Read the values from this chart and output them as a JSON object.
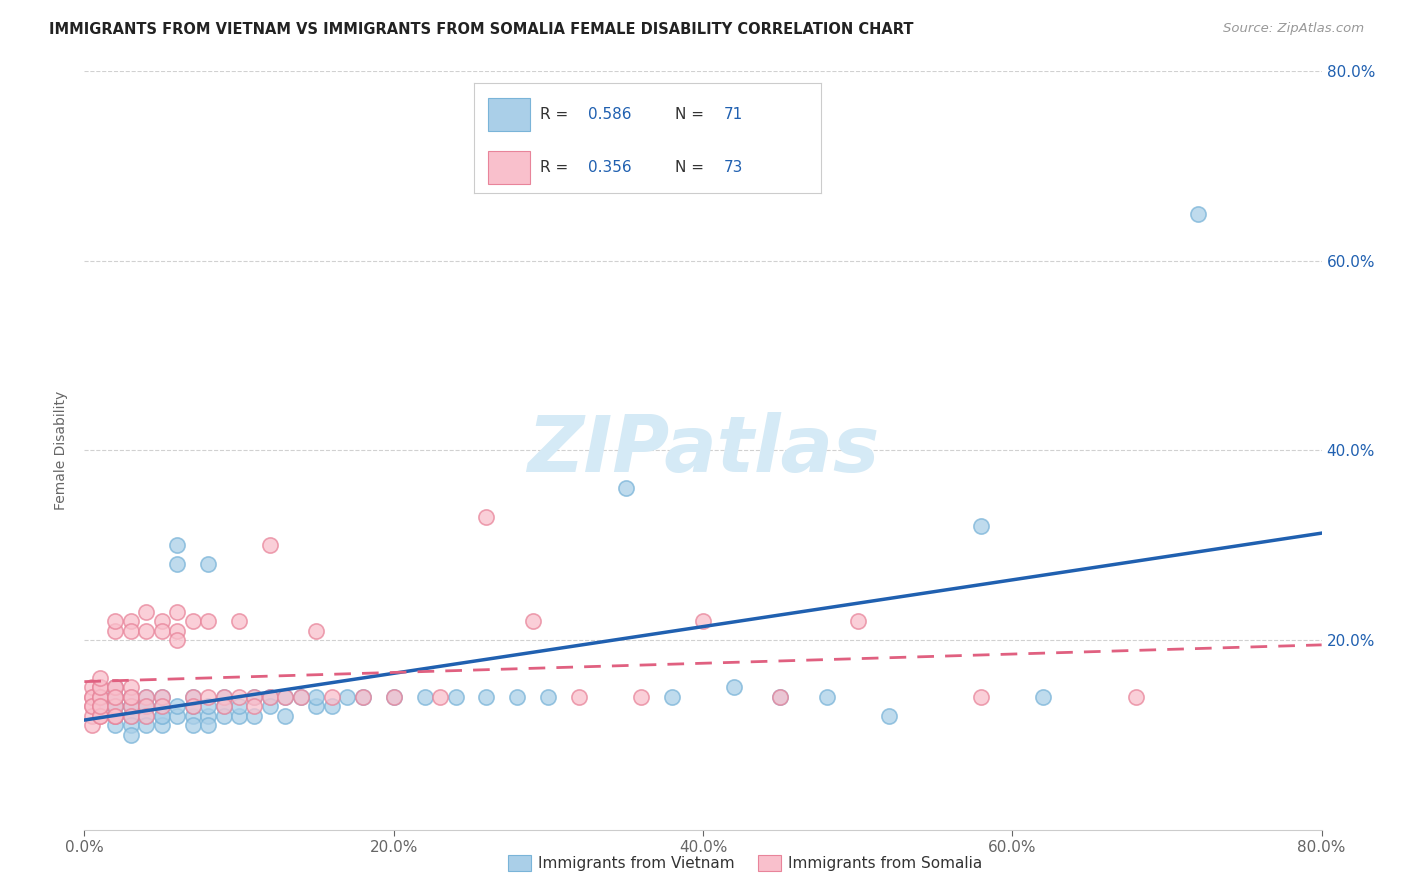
{
  "title": "IMMIGRANTS FROM VIETNAM VS IMMIGRANTS FROM SOMALIA FEMALE DISABILITY CORRELATION CHART",
  "source": "Source: ZipAtlas.com",
  "ylabel": "Female Disability",
  "xlim": [
    0.0,
    0.8
  ],
  "ylim": [
    0.0,
    0.8
  ],
  "xtick_labels": [
    "0.0%",
    "20.0%",
    "40.0%",
    "60.0%",
    "80.0%"
  ],
  "xtick_positions": [
    0.0,
    0.2,
    0.4,
    0.6,
    0.8
  ],
  "ytick_labels": [
    "20.0%",
    "40.0%",
    "60.0%",
    "80.0%"
  ],
  "ytick_positions": [
    0.2,
    0.4,
    0.6,
    0.8
  ],
  "vietnam_color": "#aacfe8",
  "vietnam_edge_color": "#7ab4d8",
  "somalia_color": "#f9c0cc",
  "somalia_edge_color": "#e8849a",
  "vietnam_line_color": "#2060b0",
  "somalia_line_color": "#e06080",
  "background_color": "#ffffff",
  "grid_color": "#cccccc",
  "watermark_color": "#d5eaf6",
  "vietnam_R": "0.586",
  "vietnam_N": "71",
  "somalia_R": "0.356",
  "somalia_N": "73",
  "vietnam_scatter_x": [
    0.01,
    0.01,
    0.02,
    0.02,
    0.02,
    0.02,
    0.02,
    0.02,
    0.02,
    0.02,
    0.03,
    0.03,
    0.03,
    0.03,
    0.03,
    0.03,
    0.03,
    0.04,
    0.04,
    0.04,
    0.04,
    0.04,
    0.05,
    0.05,
    0.05,
    0.05,
    0.05,
    0.06,
    0.06,
    0.06,
    0.06,
    0.07,
    0.07,
    0.07,
    0.07,
    0.08,
    0.08,
    0.08,
    0.08,
    0.09,
    0.09,
    0.09,
    0.1,
    0.1,
    0.11,
    0.11,
    0.12,
    0.12,
    0.13,
    0.13,
    0.14,
    0.15,
    0.15,
    0.16,
    0.17,
    0.18,
    0.2,
    0.22,
    0.24,
    0.26,
    0.28,
    0.3,
    0.35,
    0.38,
    0.42,
    0.45,
    0.48,
    0.52,
    0.58,
    0.62,
    0.72
  ],
  "vietnam_scatter_y": [
    0.13,
    0.14,
    0.12,
    0.13,
    0.14,
    0.15,
    0.12,
    0.13,
    0.11,
    0.14,
    0.12,
    0.13,
    0.14,
    0.12,
    0.11,
    0.13,
    0.1,
    0.12,
    0.13,
    0.14,
    0.11,
    0.13,
    0.12,
    0.13,
    0.14,
    0.11,
    0.12,
    0.28,
    0.3,
    0.12,
    0.13,
    0.12,
    0.13,
    0.14,
    0.11,
    0.28,
    0.12,
    0.13,
    0.11,
    0.13,
    0.14,
    0.12,
    0.12,
    0.13,
    0.14,
    0.12,
    0.14,
    0.13,
    0.14,
    0.12,
    0.14,
    0.13,
    0.14,
    0.13,
    0.14,
    0.14,
    0.14,
    0.14,
    0.14,
    0.14,
    0.14,
    0.14,
    0.36,
    0.14,
    0.15,
    0.14,
    0.14,
    0.12,
    0.32,
    0.14,
    0.65
  ],
  "somalia_scatter_x": [
    0.005,
    0.005,
    0.005,
    0.005,
    0.005,
    0.005,
    0.005,
    0.01,
    0.01,
    0.01,
    0.01,
    0.01,
    0.01,
    0.01,
    0.01,
    0.01,
    0.02,
    0.02,
    0.02,
    0.02,
    0.02,
    0.02,
    0.02,
    0.02,
    0.02,
    0.03,
    0.03,
    0.03,
    0.03,
    0.03,
    0.03,
    0.03,
    0.04,
    0.04,
    0.04,
    0.04,
    0.04,
    0.05,
    0.05,
    0.05,
    0.05,
    0.06,
    0.06,
    0.06,
    0.07,
    0.07,
    0.07,
    0.08,
    0.08,
    0.09,
    0.09,
    0.1,
    0.1,
    0.11,
    0.11,
    0.12,
    0.12,
    0.13,
    0.14,
    0.15,
    0.16,
    0.18,
    0.2,
    0.23,
    0.26,
    0.29,
    0.32,
    0.36,
    0.4,
    0.45,
    0.5,
    0.58,
    0.68
  ],
  "somalia_scatter_y": [
    0.13,
    0.14,
    0.15,
    0.12,
    0.14,
    0.13,
    0.11,
    0.12,
    0.14,
    0.15,
    0.13,
    0.12,
    0.14,
    0.15,
    0.16,
    0.13,
    0.12,
    0.14,
    0.15,
    0.21,
    0.22,
    0.13,
    0.15,
    0.14,
    0.12,
    0.14,
    0.15,
    0.22,
    0.21,
    0.13,
    0.14,
    0.12,
    0.21,
    0.23,
    0.14,
    0.13,
    0.12,
    0.22,
    0.21,
    0.14,
    0.13,
    0.23,
    0.21,
    0.2,
    0.22,
    0.14,
    0.13,
    0.22,
    0.14,
    0.14,
    0.13,
    0.14,
    0.22,
    0.14,
    0.13,
    0.14,
    0.3,
    0.14,
    0.14,
    0.21,
    0.14,
    0.14,
    0.14,
    0.14,
    0.33,
    0.22,
    0.14,
    0.14,
    0.22,
    0.14,
    0.22,
    0.14,
    0.14
  ]
}
